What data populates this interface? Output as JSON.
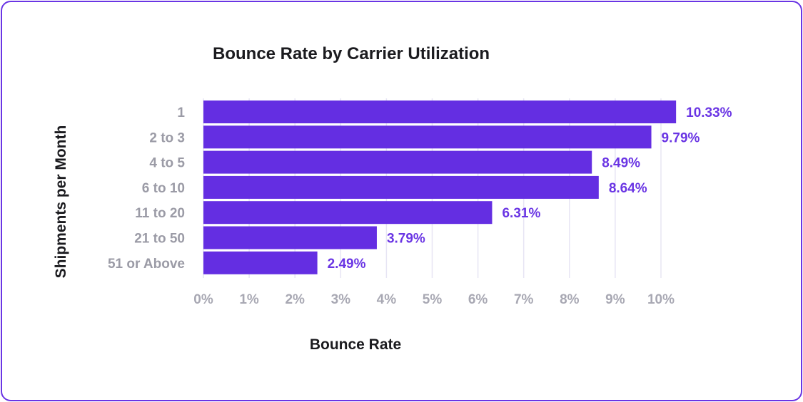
{
  "chart_data": {
    "type": "bar",
    "orientation": "horizontal",
    "title": "Bounce Rate by Carrier Utilization",
    "xlabel": "Bounce Rate",
    "ylabel": "Shipments per Month",
    "categories": [
      "1",
      "2 to 3",
      "4 to 5",
      "6 to 10",
      "11 to 20",
      "21 to 50",
      "51 or Above"
    ],
    "values": [
      10.33,
      9.79,
      8.49,
      8.64,
      6.31,
      3.79,
      2.49
    ],
    "value_labels": [
      "10.33%",
      "9.79%",
      "8.49%",
      "8.64%",
      "6.31%",
      "3.79%",
      "2.49%"
    ],
    "xlim": [
      0,
      10
    ],
    "x_ticks": [
      0,
      1,
      2,
      3,
      4,
      5,
      6,
      7,
      8,
      9,
      10
    ],
    "x_tick_labels": [
      "0%",
      "1%",
      "2%",
      "3%",
      "4%",
      "5%",
      "6%",
      "7%",
      "8%",
      "9%",
      "10%"
    ],
    "grid": true,
    "colors": {
      "bar": "#642ee2",
      "value_label": "#6a35e4",
      "grid": "#e7e5f4",
      "border": "#6a35e4"
    }
  }
}
